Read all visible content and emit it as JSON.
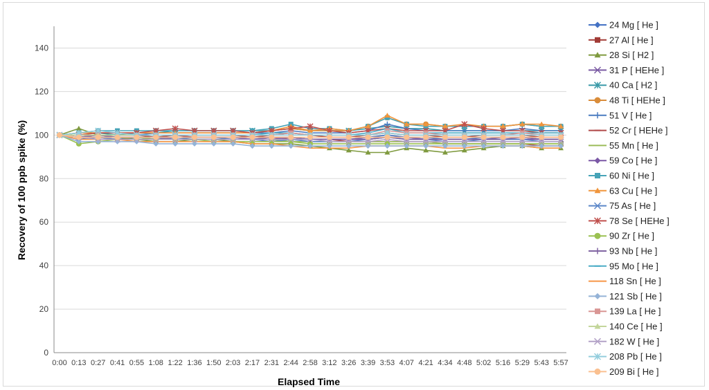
{
  "chart_data": {
    "type": "line",
    "title": "",
    "xlabel": "Elapsed Time",
    "ylabel": "Recovery of 100 ppb spike  (%)",
    "ylim": [
      0,
      150
    ],
    "yticks": [
      0,
      20,
      40,
      60,
      80,
      100,
      120,
      140
    ],
    "grid": "horizontal",
    "legend_position": "right",
    "categories": [
      "0:00",
      "0:13",
      "0:27",
      "0:41",
      "0:55",
      "1:08",
      "1:22",
      "1:36",
      "1:50",
      "2:03",
      "2:17",
      "2:31",
      "2:44",
      "2:58",
      "3:12",
      "3:26",
      "3:39",
      "3:53",
      "4:07",
      "4:21",
      "4:34",
      "4:48",
      "5:02",
      "5:16",
      "5:29",
      "5:43",
      "5:57"
    ],
    "series": [
      {
        "name": "24  Mg  [ He ]",
        "color": "#4472c4",
        "marker": "diamond",
        "values": [
          100,
          98,
          99,
          98,
          99,
          99,
          98,
          99,
          99,
          98,
          98,
          99,
          99,
          98,
          98,
          98,
          99,
          100,
          99,
          99,
          98,
          98,
          99,
          99,
          99,
          98,
          98
        ]
      },
      {
        "name": "27  Al  [ He ]",
        "color": "#a23b36",
        "marker": "square",
        "values": [
          100,
          99,
          100,
          100,
          100,
          99,
          100,
          100,
          100,
          100,
          99,
          100,
          101,
          100,
          99,
          99,
          100,
          101,
          100,
          100,
          99,
          99,
          100,
          100,
          100,
          99,
          99
        ]
      },
      {
        "name": "28  Si  [ H2 ]",
        "color": "#7f9a3f",
        "marker": "triangle",
        "values": [
          100,
          103,
          100,
          99,
          98,
          97,
          97,
          98,
          98,
          97,
          96,
          96,
          96,
          95,
          94,
          93,
          92,
          92,
          94,
          93,
          92,
          93,
          94,
          95,
          95,
          94,
          94
        ]
      },
      {
        "name": "31  P  [ HEHe ]",
        "color": "#7a5aa3",
        "marker": "x",
        "values": [
          100,
          99,
          100,
          99,
          99,
          98,
          99,
          99,
          99,
          99,
          98,
          99,
          99,
          98,
          98,
          98,
          99,
          99,
          99,
          98,
          98,
          98,
          98,
          99,
          99,
          98,
          98
        ]
      },
      {
        "name": "40  Ca  [ H2 ]",
        "color": "#3a9aa8",
        "marker": "star",
        "values": [
          100,
          101,
          101,
          100,
          101,
          101,
          102,
          102,
          102,
          102,
          102,
          102,
          103,
          102,
          102,
          102,
          103,
          104,
          103,
          103,
          102,
          102,
          102,
          102,
          102,
          102,
          102
        ]
      },
      {
        "name": "48  Ti  [ HEHe ]",
        "color": "#d98c3a",
        "marker": "circle",
        "values": [
          100,
          101,
          101,
          101,
          101,
          101,
          101,
          101,
          101,
          101,
          101,
          102,
          103,
          102,
          102,
          102,
          104,
          108,
          105,
          105,
          104,
          104,
          104,
          104,
          105,
          104,
          104
        ]
      },
      {
        "name": "51  V  [ He ]",
        "color": "#4a7bc0",
        "marker": "plus",
        "values": [
          100,
          100,
          100,
          100,
          100,
          101,
          101,
          101,
          101,
          101,
          101,
          101,
          102,
          101,
          101,
          101,
          102,
          105,
          103,
          102,
          102,
          102,
          102,
          102,
          103,
          102,
          102
        ]
      },
      {
        "name": "52  Cr  [ HEHe ]",
        "color": "#b04a4a",
        "marker": "dash",
        "values": [
          100,
          100,
          100,
          100,
          100,
          100,
          100,
          99,
          99,
          99,
          99,
          99,
          98,
          98,
          98,
          97,
          97,
          97,
          97,
          97,
          96,
          96,
          96,
          96,
          96,
          95,
          95
        ]
      },
      {
        "name": "55  Mn  [ He ]",
        "color": "#9bbb59",
        "marker": "none",
        "values": [
          100,
          99,
          99,
          99,
          99,
          98,
          98,
          98,
          98,
          98,
          98,
          98,
          97,
          97,
          97,
          97,
          97,
          97,
          97,
          97,
          96,
          96,
          96,
          96,
          96,
          96,
          96
        ]
      },
      {
        "name": "59  Co  [ He ]",
        "color": "#7b58a6",
        "marker": "diamond",
        "values": [
          100,
          99,
          99,
          99,
          99,
          99,
          99,
          99,
          99,
          99,
          98,
          98,
          99,
          98,
          98,
          98,
          98,
          99,
          99,
          98,
          98,
          98,
          98,
          98,
          98,
          98,
          98
        ]
      },
      {
        "name": "60  Ni  [ He ]",
        "color": "#46a3b7",
        "marker": "square",
        "values": [
          100,
          101,
          102,
          102,
          102,
          102,
          102,
          102,
          102,
          102,
          102,
          103,
          105,
          103,
          103,
          102,
          104,
          108,
          105,
          104,
          104,
          104,
          104,
          104,
          105,
          104,
          104
        ]
      },
      {
        "name": "63  Cu  [ He ]",
        "color": "#f0953c",
        "marker": "triangle",
        "values": [
          100,
          101,
          101,
          101,
          101,
          101,
          101,
          101,
          101,
          101,
          101,
          102,
          104,
          102,
          103,
          102,
          104,
          109,
          105,
          105,
          104,
          105,
          104,
          104,
          105,
          105,
          104
        ]
      },
      {
        "name": "75  As  [ He ]",
        "color": "#5b86c8",
        "marker": "x",
        "values": [
          100,
          99,
          99,
          98,
          98,
          98,
          98,
          98,
          98,
          98,
          98,
          97,
          98,
          97,
          97,
          97,
          98,
          99,
          98,
          98,
          97,
          97,
          98,
          98,
          98,
          97,
          97
        ]
      },
      {
        "name": "78  Se  [ HEHe ]",
        "color": "#c0504d",
        "marker": "star",
        "values": [
          100,
          100,
          101,
          101,
          101,
          102,
          103,
          102,
          102,
          102,
          101,
          102,
          103,
          104,
          102,
          101,
          102,
          103,
          102,
          102,
          102,
          105,
          103,
          102,
          102,
          101,
          101
        ]
      },
      {
        "name": "90  Zr  [ He ]",
        "color": "#9bc152",
        "marker": "circle",
        "values": [
          100,
          96,
          97,
          98,
          98,
          98,
          98,
          98,
          97,
          97,
          97,
          97,
          97,
          96,
          96,
          96,
          96,
          96,
          96,
          96,
          96,
          96,
          96,
          96,
          96,
          96,
          96
        ]
      },
      {
        "name": "93  Nb  [ He ]",
        "color": "#8064a2",
        "marker": "plus",
        "values": [
          100,
          99,
          99,
          99,
          99,
          99,
          99,
          99,
          99,
          99,
          99,
          99,
          99,
          98,
          98,
          98,
          98,
          99,
          98,
          98,
          98,
          98,
          98,
          98,
          99,
          98,
          98
        ]
      },
      {
        "name": "95  Mo  [ He ]",
        "color": "#4bacc6",
        "marker": "dash",
        "values": [
          100,
          100,
          100,
          100,
          100,
          100,
          100,
          100,
          100,
          100,
          100,
          101,
          101,
          100,
          100,
          100,
          101,
          103,
          101,
          101,
          101,
          101,
          101,
          101,
          101,
          101,
          101
        ]
      },
      {
        "name": "118  Sn  [ He ]",
        "color": "#f79646",
        "marker": "none",
        "values": [
          100,
          98,
          98,
          98,
          97,
          97,
          97,
          97,
          97,
          97,
          96,
          96,
          95,
          94,
          94,
          94,
          95,
          95,
          95,
          95,
          94,
          94,
          95,
          95,
          95,
          94,
          94
        ]
      },
      {
        "name": "121  Sb  [ He ]",
        "color": "#95b3d7",
        "marker": "diamond",
        "values": [
          100,
          97,
          97,
          97,
          97,
          96,
          96,
          96,
          96,
          96,
          95,
          95,
          95,
          95,
          95,
          95,
          95,
          95,
          95,
          95,
          95,
          95,
          95,
          95,
          95,
          95,
          95
        ]
      },
      {
        "name": "139  La  [ He ]",
        "color": "#d99694",
        "marker": "square",
        "values": [
          100,
          100,
          100,
          100,
          100,
          100,
          100,
          100,
          100,
          100,
          100,
          100,
          101,
          100,
          100,
          100,
          100,
          102,
          101,
          101,
          100,
          100,
          100,
          100,
          101,
          100,
          100
        ]
      },
      {
        "name": "140  Ce  [ He ]",
        "color": "#c3d69b",
        "marker": "triangle",
        "values": [
          100,
          100,
          100,
          100,
          100,
          100,
          100,
          100,
          100,
          100,
          100,
          100,
          100,
          100,
          100,
          100,
          100,
          101,
          100,
          100,
          100,
          100,
          100,
          100,
          100,
          100,
          100
        ]
      },
      {
        "name": "182  W  [ He ]",
        "color": "#b3a2c7",
        "marker": "x",
        "values": [
          100,
          99,
          98,
          98,
          98,
          98,
          98,
          98,
          98,
          98,
          98,
          98,
          98,
          98,
          97,
          97,
          97,
          98,
          97,
          97,
          97,
          97,
          97,
          97,
          97,
          97,
          97
        ]
      },
      {
        "name": "208  Pb  [ He ]",
        "color": "#93cddd",
        "marker": "star",
        "values": [
          100,
          101,
          102,
          101,
          100,
          100,
          100,
          100,
          100,
          100,
          100,
          100,
          100,
          100,
          100,
          100,
          100,
          101,
          100,
          100,
          100,
          100,
          100,
          100,
          100,
          100,
          100
        ]
      },
      {
        "name": "209  Bi  [ He ]",
        "color": "#fac090",
        "marker": "circle",
        "values": [
          100,
          99,
          99,
          99,
          99,
          99,
          99,
          99,
          99,
          99,
          99,
          99,
          99,
          99,
          99,
          99,
          99,
          99,
          99,
          99,
          99,
          99,
          99,
          99,
          99,
          99,
          99
        ]
      }
    ]
  }
}
